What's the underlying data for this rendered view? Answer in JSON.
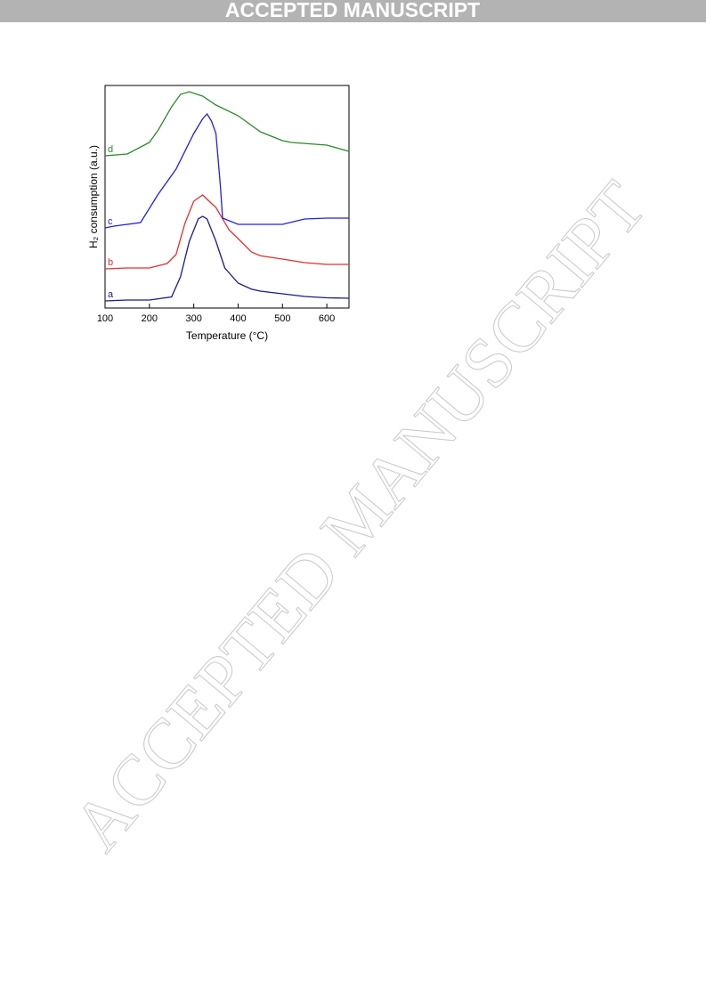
{
  "header": {
    "banner": "ACCEPTED MANUSCRIPT"
  },
  "watermark": "ACCEPTED MANUSCRIPT",
  "chart_data": {
    "type": "line",
    "xlabel": "Temperature (°C)",
    "ylabel": "H₂ consumption (a.u.)",
    "xlim": [
      100,
      650
    ],
    "xticks": [
      100,
      200,
      300,
      400,
      500,
      600
    ],
    "ylim": [
      0,
      100
    ],
    "series": [
      {
        "name": "a",
        "color": "#1a1a8c",
        "x": [
          100,
          150,
          200,
          250,
          270,
          290,
          310,
          320,
          330,
          350,
          370,
          400,
          430,
          450,
          500,
          550,
          600,
          650
        ],
        "values": [
          3.2,
          3.6,
          3.6,
          5,
          14,
          30,
          40,
          41.2,
          40,
          30,
          18,
          11.2,
          8.5,
          7.6,
          6.4,
          5.2,
          4.6,
          4.4
        ]
      },
      {
        "name": "b",
        "color": "#e03030",
        "x": [
          100,
          150,
          200,
          240,
          260,
          280,
          300,
          320,
          340,
          350,
          380,
          400,
          430,
          450,
          500,
          550,
          600,
          650
        ],
        "values": [
          17.6,
          18,
          18,
          20,
          24,
          38,
          48,
          50.8,
          47,
          45.2,
          35,
          31.2,
          25.2,
          23.5,
          22,
          20.4,
          19.6,
          19.6
        ]
      },
      {
        "name": "c",
        "color": "#2020e0",
        "x": [
          100,
          120,
          180,
          220,
          260,
          300,
          320,
          330,
          340,
          350,
          360,
          365,
          400,
          450,
          500,
          550,
          600,
          650
        ],
        "values": [
          36,
          36.8,
          38.4,
          51.2,
          62.4,
          78.4,
          85,
          87.2,
          84,
          78.4,
          55,
          40.4,
          37.6,
          37.6,
          37.6,
          40,
          40.4,
          40.4
        ]
      },
      {
        "name": "d",
        "color": "#2a8a2a",
        "x": [
          100,
          150,
          200,
          220,
          250,
          270,
          290,
          320,
          350,
          400,
          450,
          500,
          520,
          600,
          650
        ],
        "values": [
          68.4,
          69.2,
          74.4,
          80,
          90.4,
          96,
          97.2,
          95.2,
          91.2,
          86.4,
          79.2,
          75.2,
          74.4,
          73.2,
          70.4
        ]
      }
    ]
  }
}
